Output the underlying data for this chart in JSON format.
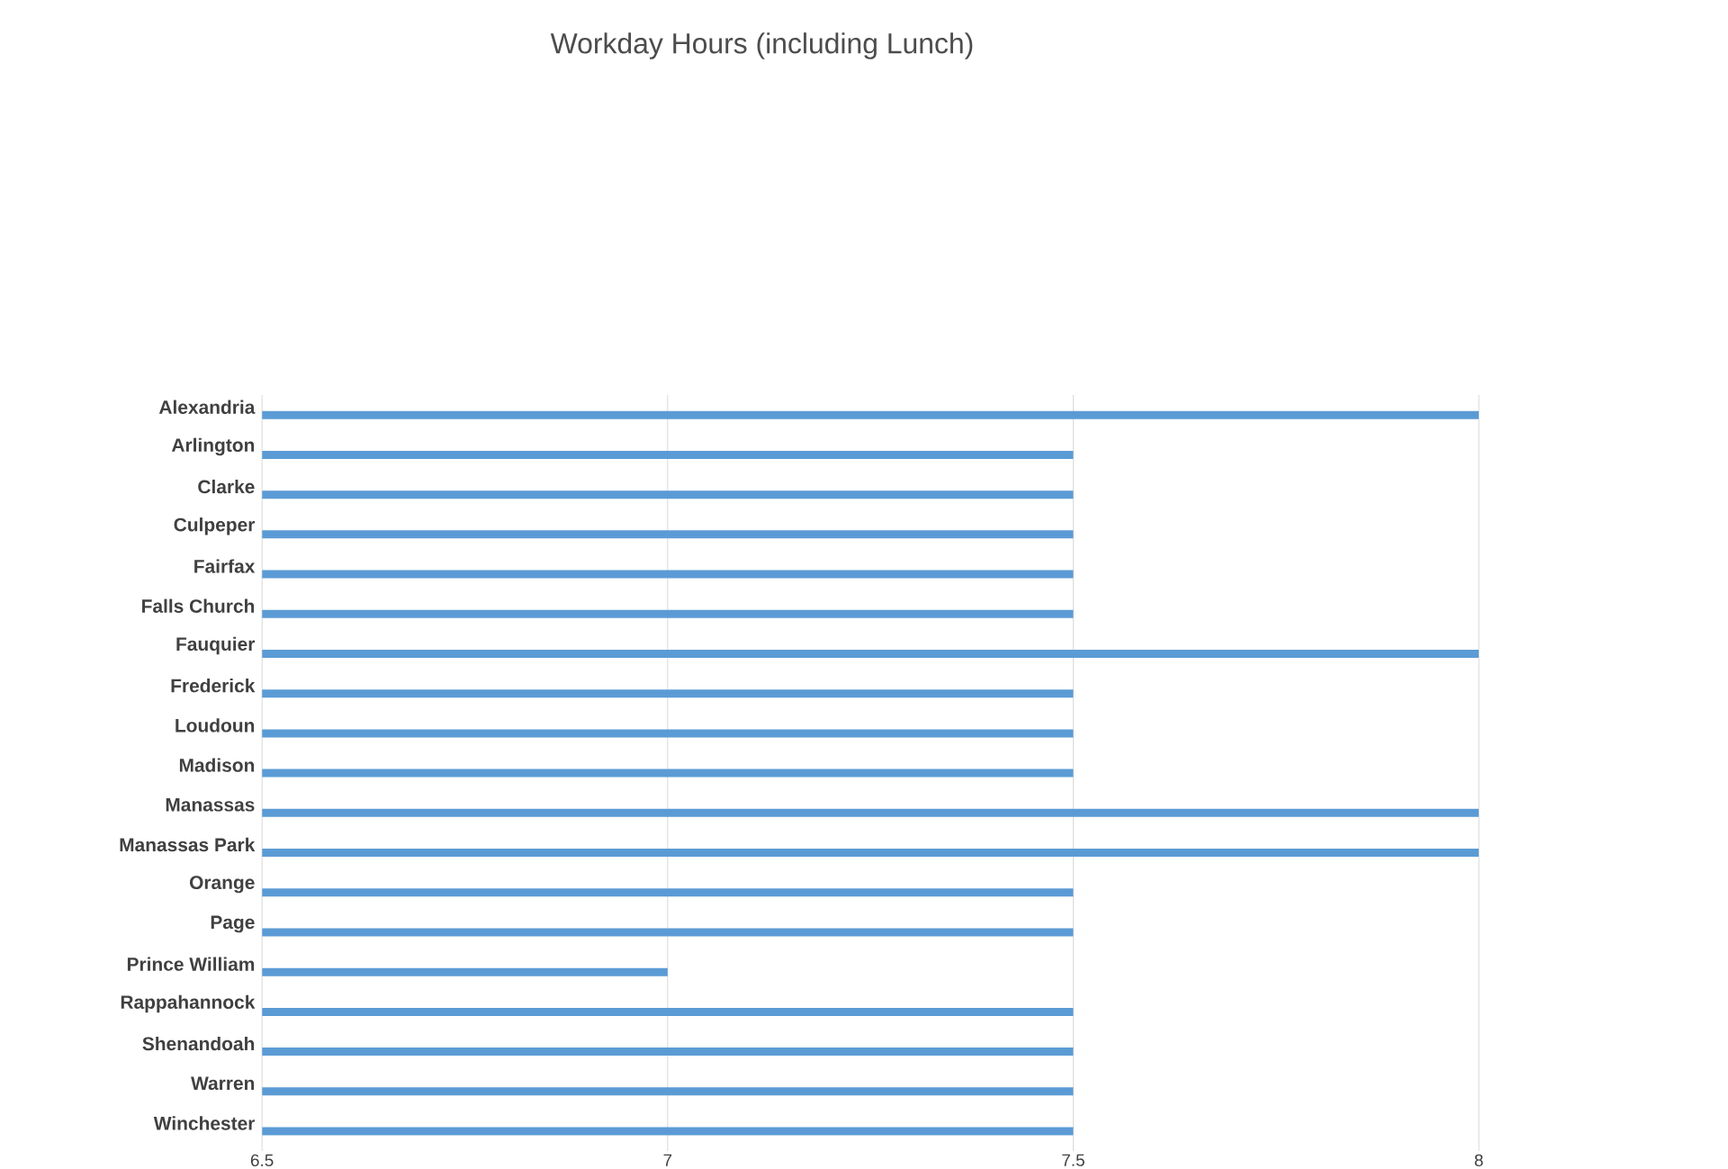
{
  "chart_data": {
    "type": "bar",
    "orientation": "horizontal",
    "title": "Workday Hours (including Lunch)",
    "categories": [
      "Alexandria",
      "Arlington",
      "Clarke",
      "Culpeper",
      "Fairfax",
      "Falls Church",
      "Fauquier",
      "Frederick",
      "Loudoun",
      "Madison",
      "Manassas",
      "Manassas Park",
      "Orange",
      "Page",
      "Prince William",
      "Rappahannock",
      "Shenandoah",
      "Warren",
      "Winchester"
    ],
    "values": [
      8,
      7.5,
      7.5,
      7.5,
      7.5,
      7.5,
      8,
      7.5,
      7.5,
      7.5,
      8,
      8,
      7.5,
      7.5,
      7,
      7.5,
      7.5,
      7.5,
      7.5
    ],
    "color": "#5b9bd5",
    "xlim": [
      6.5,
      8
    ],
    "xticks": [
      6.5,
      7,
      7.5,
      8
    ],
    "grid": "x"
  }
}
